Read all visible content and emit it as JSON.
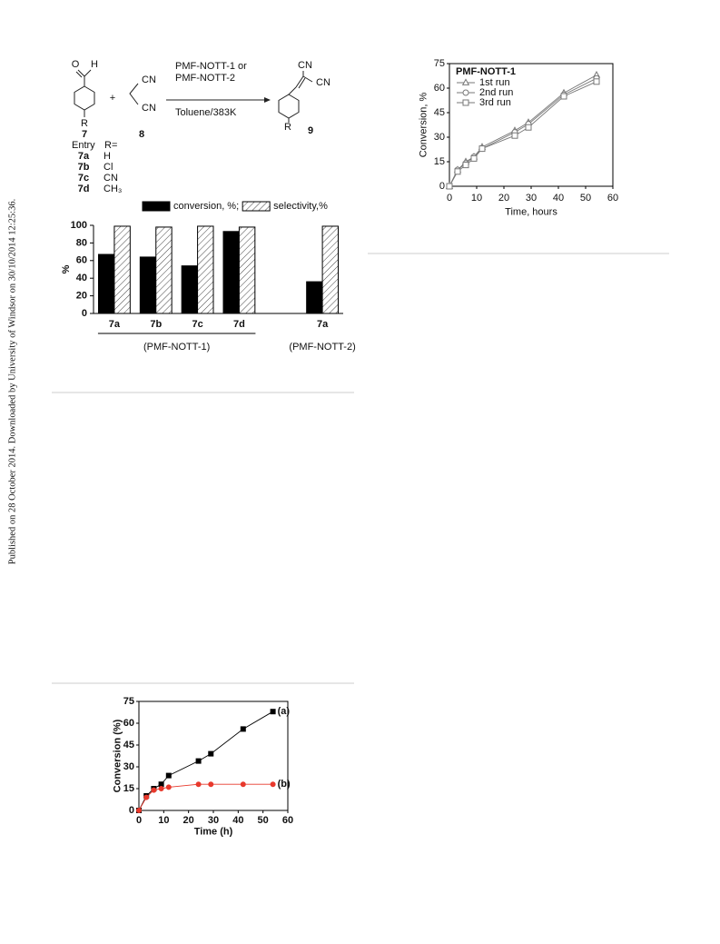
{
  "watermark": "Published on 28 October 2014. Downloaded by University of Windsor on 30/10/2014 12:25:36.",
  "scheme": {
    "o": "O",
    "h": "H",
    "r7": "R",
    "label7": "7",
    "plus": "+",
    "cn8a": "CN",
    "cn8b": "CN",
    "label8": "8",
    "catalyst_1": "PMF-NOTT-1 or",
    "catalyst_2": "PMF-NOTT-2",
    "conditions": "Toluene/383K",
    "cn9a": "CN",
    "cn9b": "CN",
    "r9": "R",
    "label9": "9",
    "entry_header": "Entry",
    "r_header": "R=",
    "entries": [
      [
        "7a",
        "H"
      ],
      [
        "7b",
        "Cl"
      ],
      [
        "7c",
        "CN"
      ],
      [
        "7d",
        "CH₃"
      ]
    ]
  },
  "chart_data": [
    {
      "type": "bar",
      "ylabel": "%",
      "categories": [
        "7a",
        "7b",
        "7c",
        "7d",
        null,
        "7a"
      ],
      "groups": [
        "(PMF-NOTT-1)",
        "(PMF-NOTT-2)"
      ],
      "series": [
        {
          "name": "conversion, %;",
          "color": "#000000",
          "fill": "solid",
          "values": [
            67,
            64,
            54,
            93,
            null,
            36
          ]
        },
        {
          "name": "selectivity,%",
          "color": "#000000",
          "fill": "hatched",
          "values": [
            99,
            98,
            99,
            98,
            null,
            99
          ]
        }
      ],
      "ylim": [
        0,
        100
      ],
      "yticks": [
        0,
        20,
        40,
        60,
        80,
        100
      ]
    },
    {
      "type": "line",
      "xlabel": "Time, hours",
      "ylabel": "Conversion, %",
      "legend": "upper left",
      "legend_title": "PMF-NOTT-1",
      "marker_style": "open",
      "x": [
        0,
        3,
        6,
        9,
        12,
        24,
        29,
        42,
        54
      ],
      "series": [
        {
          "name": "1st run",
          "color": "#777777",
          "marker": "triangle",
          "values": [
            0,
            10,
            15,
            18,
            24,
            34,
            39,
            57,
            68
          ]
        },
        {
          "name": "2nd run",
          "color": "#777777",
          "marker": "circle",
          "values": [
            0,
            10,
            14,
            18,
            23,
            33,
            38,
            56,
            66
          ]
        },
        {
          "name": "3rd run",
          "color": "#777777",
          "marker": "square",
          "values": [
            0,
            9,
            13,
            17,
            23,
            31,
            36,
            55,
            64
          ]
        }
      ],
      "xlim": [
        0,
        60
      ],
      "xticks": [
        0,
        10,
        20,
        30,
        40,
        50,
        60
      ],
      "ylim": [
        0,
        75
      ],
      "yticks": [
        0,
        15,
        30,
        45,
        60,
        75
      ]
    },
    {
      "type": "line",
      "xlabel": "Time (h)",
      "ylabel": "Conversion (%)",
      "legend": "inline",
      "marker_style": "filled",
      "x": [
        0,
        3,
        6,
        9,
        12,
        24,
        29,
        42,
        54
      ],
      "series": [
        {
          "name": "(a)",
          "color": "#000000",
          "marker": "square",
          "values": [
            0,
            10,
            15,
            18,
            24,
            34,
            39,
            56,
            68
          ]
        },
        {
          "name": "(b)",
          "color": "#e8392c",
          "marker": "circle",
          "values": [
            0,
            9,
            14,
            15,
            16,
            18,
            18,
            18,
            18
          ]
        }
      ],
      "xlim": [
        0,
        60
      ],
      "xticks": [
        0,
        10,
        20,
        30,
        40,
        50,
        60
      ],
      "ylim": [
        0,
        75
      ],
      "yticks": [
        0,
        15,
        30,
        45,
        60,
        75
      ]
    }
  ]
}
